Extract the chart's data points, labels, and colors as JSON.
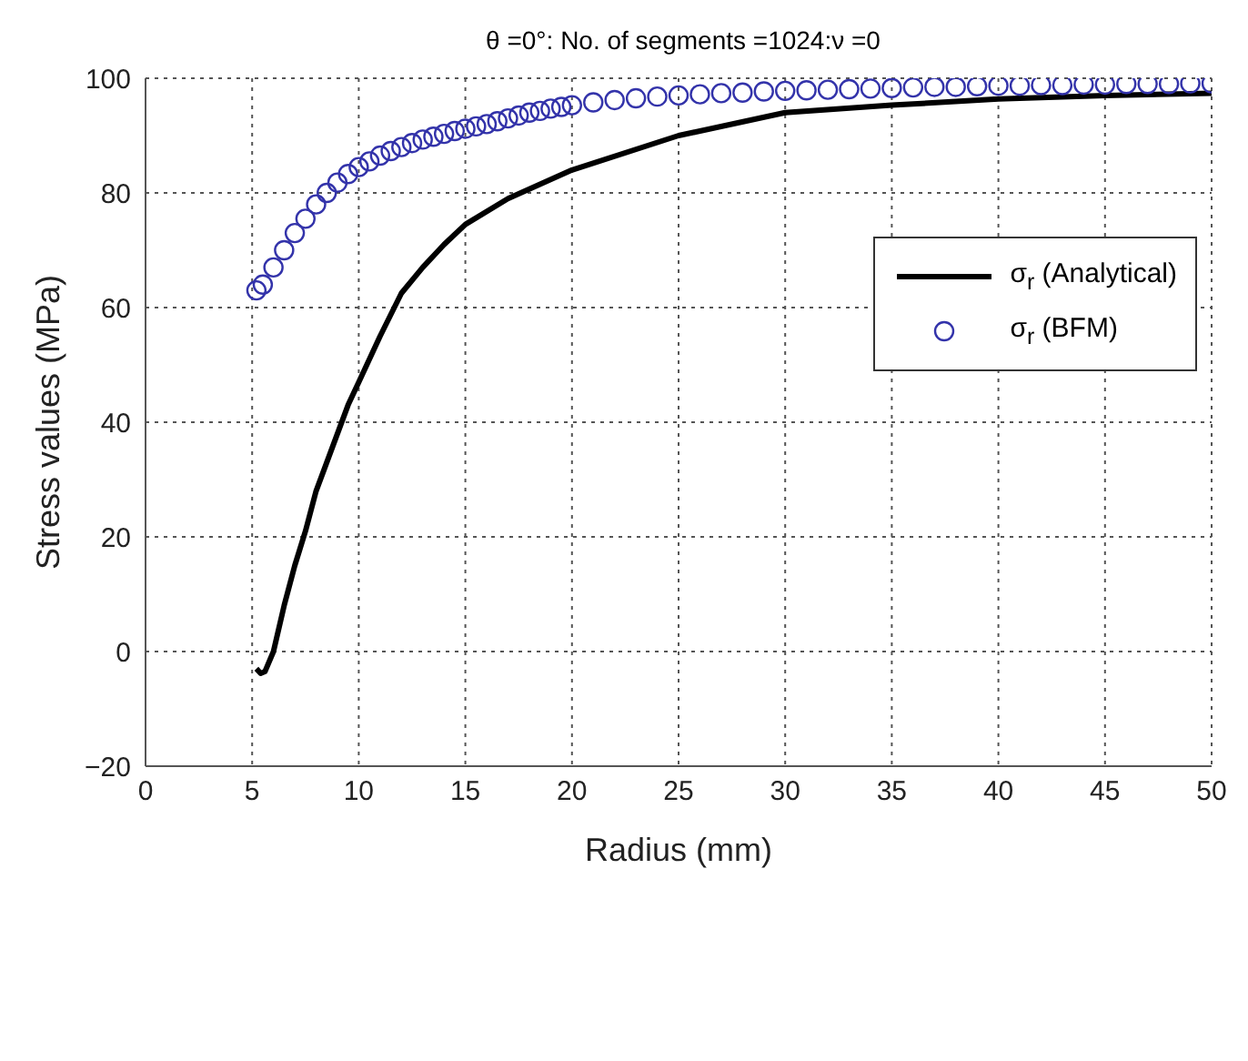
{
  "chart_data": {
    "type": "line",
    "title": "θ =0°: No. of segments =1024:ν =0",
    "xlabel": "Radius (mm)",
    "ylabel": "Stress values (MPa)",
    "xlim": [
      0,
      50
    ],
    "xticks": [
      0,
      5,
      10,
      15,
      20,
      25,
      30,
      35,
      40,
      45,
      50
    ],
    "ylim": [
      -20,
      100
    ],
    "yticks": [
      -20,
      0,
      20,
      40,
      60,
      80,
      100
    ],
    "grid": true,
    "legend": "right",
    "series": [
      {
        "name": "σ$_{r}$ (Analytical)",
        "color": "#000000",
        "marker": "none",
        "line_style": "solid",
        "x": [
          5.2,
          5.4,
          5.6,
          6,
          6.5,
          7,
          7.5,
          8,
          8.5,
          9,
          9.5,
          10,
          11,
          12,
          13,
          14,
          15,
          17,
          20,
          25,
          30,
          35,
          40,
          45,
          50
        ],
        "values": [
          -3,
          -3.8,
          -3.5,
          0,
          8,
          15,
          21,
          28,
          33,
          38,
          43,
          47,
          55,
          62.5,
          67,
          71,
          74.5,
          79,
          84,
          90,
          94,
          95.3,
          96.4,
          97,
          97.4
        ]
      },
      {
        "name": "σ$_{r}$ (BFM)",
        "type": "scatter",
        "color": "#3333aa",
        "marker": "circle",
        "x": [
          5.2,
          5.5,
          6,
          6.5,
          7,
          7.5,
          8,
          8.5,
          9,
          9.5,
          10,
          10.5,
          11,
          11.5,
          12,
          12.5,
          13,
          13.5,
          14,
          14.5,
          15,
          15.5,
          16,
          16.5,
          17,
          17.5,
          18,
          18.5,
          19,
          19.5,
          20,
          21,
          22,
          23,
          24,
          25,
          26,
          27,
          28,
          29,
          30,
          31,
          32,
          33,
          34,
          35,
          36,
          37,
          38,
          39,
          40,
          41,
          42,
          43,
          44,
          45,
          46,
          47,
          48,
          49,
          50
        ],
        "values": [
          63,
          64,
          67,
          70,
          73,
          75.5,
          78,
          80,
          81.8,
          83.3,
          84.5,
          85.5,
          86.5,
          87.3,
          88,
          88.7,
          89.3,
          89.8,
          90.3,
          90.8,
          91.2,
          91.6,
          92,
          92.5,
          93,
          93.5,
          94,
          94.3,
          94.7,
          95,
          95.3,
          95.8,
          96.2,
          96.5,
          96.8,
          97,
          97.2,
          97.4,
          97.5,
          97.7,
          97.8,
          97.9,
          98,
          98.1,
          98.2,
          98.3,
          98.4,
          98.5,
          98.5,
          98.6,
          98.7,
          98.7,
          98.8,
          98.8,
          98.9,
          98.9,
          99,
          99,
          99,
          99.1,
          99.1
        ]
      }
    ]
  }
}
